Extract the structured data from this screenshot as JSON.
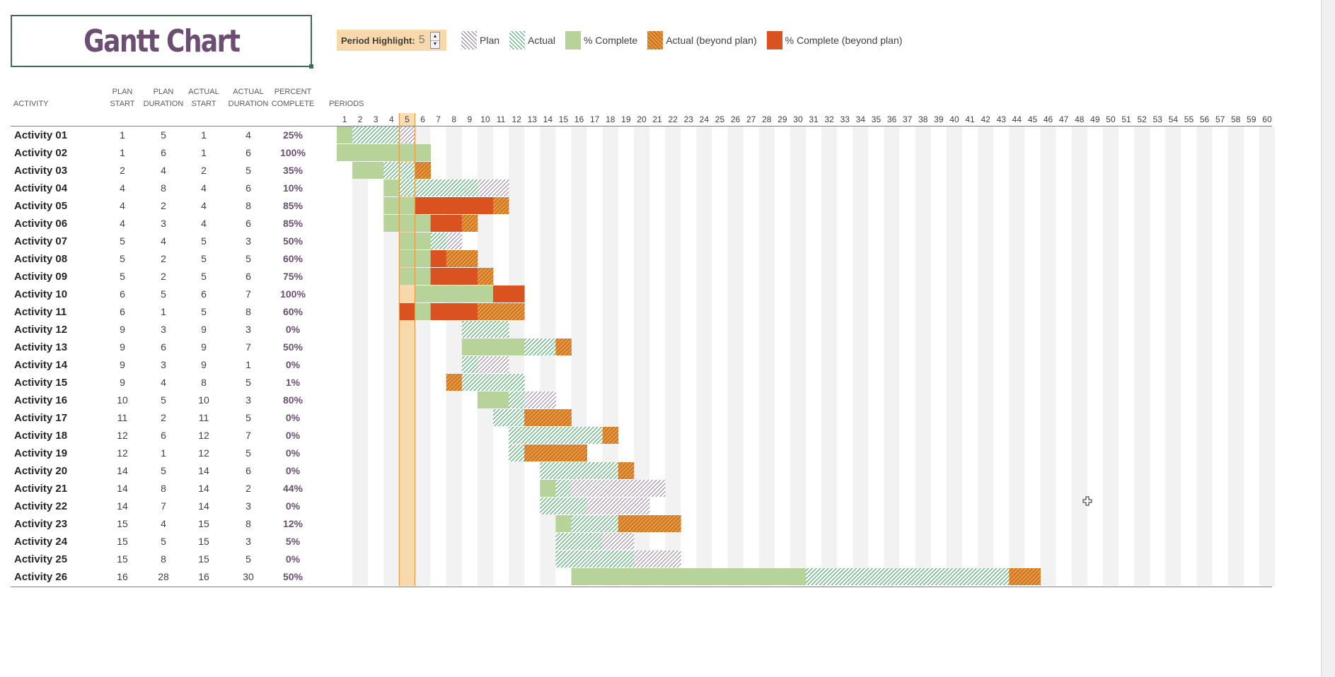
{
  "title": "Gantt Chart",
  "period_highlight": {
    "label": "Period Highlight:",
    "value": 5
  },
  "legend": [
    {
      "key": "plan",
      "label": "Plan"
    },
    {
      "key": "actual",
      "label": "Actual"
    },
    {
      "key": "complete",
      "label": "% Complete"
    },
    {
      "key": "beyond",
      "label": "Actual (beyond plan)"
    },
    {
      "key": "complete-beyond",
      "label": "% Complete (beyond plan)"
    }
  ],
  "headers": {
    "activity": "ACTIVITY",
    "plan_start": [
      "PLAN",
      "START"
    ],
    "plan_duration": [
      "PLAN",
      "DURATION"
    ],
    "actual_start": [
      "ACTUAL",
      "START"
    ],
    "actual_duration": [
      "ACTUAL",
      "DURATION"
    ],
    "percent_complete": [
      "PERCENT",
      "COMPLETE"
    ],
    "periods": "PERIODS"
  },
  "colors": {
    "plan": "#8e7c90",
    "actual": "#4ca86b",
    "complete": "#b8d39a",
    "beyond": "#f0953f",
    "complete_beyond": "#d9521f",
    "highlight": "#f8d9ab",
    "title": "#6b4e71"
  },
  "chart_data": {
    "type": "gantt",
    "title": "Gantt Chart",
    "periods": [
      1,
      60
    ],
    "highlight_period": 5,
    "rows": [
      {
        "name": "Activity 01",
        "plan_start": 1,
        "plan_duration": 5,
        "actual_start": 1,
        "actual_duration": 4,
        "percent": "25%"
      },
      {
        "name": "Activity 02",
        "plan_start": 1,
        "plan_duration": 6,
        "actual_start": 1,
        "actual_duration": 6,
        "percent": "100%"
      },
      {
        "name": "Activity 03",
        "plan_start": 2,
        "plan_duration": 4,
        "actual_start": 2,
        "actual_duration": 5,
        "percent": "35%"
      },
      {
        "name": "Activity 04",
        "plan_start": 4,
        "plan_duration": 8,
        "actual_start": 4,
        "actual_duration": 6,
        "percent": "10%"
      },
      {
        "name": "Activity 05",
        "plan_start": 4,
        "plan_duration": 2,
        "actual_start": 4,
        "actual_duration": 8,
        "percent": "85%"
      },
      {
        "name": "Activity 06",
        "plan_start": 4,
        "plan_duration": 3,
        "actual_start": 4,
        "actual_duration": 6,
        "percent": "85%"
      },
      {
        "name": "Activity 07",
        "plan_start": 5,
        "plan_duration": 4,
        "actual_start": 5,
        "actual_duration": 3,
        "percent": "50%"
      },
      {
        "name": "Activity 08",
        "plan_start": 5,
        "plan_duration": 2,
        "actual_start": 5,
        "actual_duration": 5,
        "percent": "60%"
      },
      {
        "name": "Activity 09",
        "plan_start": 5,
        "plan_duration": 2,
        "actual_start": 5,
        "actual_duration": 6,
        "percent": "75%"
      },
      {
        "name": "Activity 10",
        "plan_start": 6,
        "plan_duration": 5,
        "actual_start": 6,
        "actual_duration": 7,
        "percent": "100%"
      },
      {
        "name": "Activity 11",
        "plan_start": 6,
        "plan_duration": 1,
        "actual_start": 5,
        "actual_duration": 8,
        "percent": "60%"
      },
      {
        "name": "Activity 12",
        "plan_start": 9,
        "plan_duration": 3,
        "actual_start": 9,
        "actual_duration": 3,
        "percent": "0%"
      },
      {
        "name": "Activity 13",
        "plan_start": 9,
        "plan_duration": 6,
        "actual_start": 9,
        "actual_duration": 7,
        "percent": "50%"
      },
      {
        "name": "Activity 14",
        "plan_start": 9,
        "plan_duration": 3,
        "actual_start": 9,
        "actual_duration": 1,
        "percent": "0%"
      },
      {
        "name": "Activity 15",
        "plan_start": 9,
        "plan_duration": 4,
        "actual_start": 8,
        "actual_duration": 5,
        "percent": "1%"
      },
      {
        "name": "Activity 16",
        "plan_start": 10,
        "plan_duration": 5,
        "actual_start": 10,
        "actual_duration": 3,
        "percent": "80%"
      },
      {
        "name": "Activity 17",
        "plan_start": 11,
        "plan_duration": 2,
        "actual_start": 11,
        "actual_duration": 5,
        "percent": "0%"
      },
      {
        "name": "Activity 18",
        "plan_start": 12,
        "plan_duration": 6,
        "actual_start": 12,
        "actual_duration": 7,
        "percent": "0%"
      },
      {
        "name": "Activity 19",
        "plan_start": 12,
        "plan_duration": 1,
        "actual_start": 12,
        "actual_duration": 5,
        "percent": "0%"
      },
      {
        "name": "Activity 20",
        "plan_start": 14,
        "plan_duration": 5,
        "actual_start": 14,
        "actual_duration": 6,
        "percent": "0%"
      },
      {
        "name": "Activity 21",
        "plan_start": 14,
        "plan_duration": 8,
        "actual_start": 14,
        "actual_duration": 2,
        "percent": "44%"
      },
      {
        "name": "Activity 22",
        "plan_start": 14,
        "plan_duration": 7,
        "actual_start": 14,
        "actual_duration": 3,
        "percent": "0%"
      },
      {
        "name": "Activity 23",
        "plan_start": 15,
        "plan_duration": 4,
        "actual_start": 15,
        "actual_duration": 8,
        "percent": "12%"
      },
      {
        "name": "Activity 24",
        "plan_start": 15,
        "plan_duration": 5,
        "actual_start": 15,
        "actual_duration": 3,
        "percent": "5%"
      },
      {
        "name": "Activity 25",
        "plan_start": 15,
        "plan_duration": 8,
        "actual_start": 15,
        "actual_duration": 5,
        "percent": "0%"
      },
      {
        "name": "Activity 26",
        "plan_start": 16,
        "plan_duration": 28,
        "actual_start": 16,
        "actual_duration": 30,
        "percent": "50%"
      }
    ]
  }
}
